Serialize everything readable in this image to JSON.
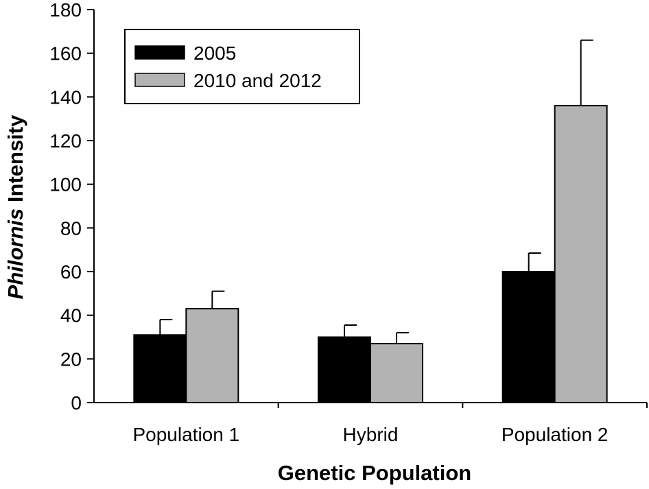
{
  "chart_data": {
    "type": "bar",
    "title": "",
    "categories": [
      "Population 1",
      "Hybrid",
      "Population 2"
    ],
    "series": [
      {
        "name": "2005",
        "color": "#000000",
        "values": [
          31,
          30,
          60
        ],
        "errors": [
          7,
          5.5,
          8.5
        ]
      },
      {
        "name": "2010 and 2012",
        "color": "#b3b3b3",
        "values": [
          43,
          27,
          136
        ],
        "errors": [
          8,
          5,
          30
        ]
      }
    ],
    "xlabel": "Genetic Population",
    "ylabel_italic": "Philornis",
    "ylabel_rest": " Intensity",
    "ylim": [
      0,
      180
    ],
    "yticks": [
      0,
      20,
      40,
      60,
      80,
      100,
      120,
      140,
      160,
      180
    ],
    "legend_position": "top-left",
    "grid": false
  }
}
